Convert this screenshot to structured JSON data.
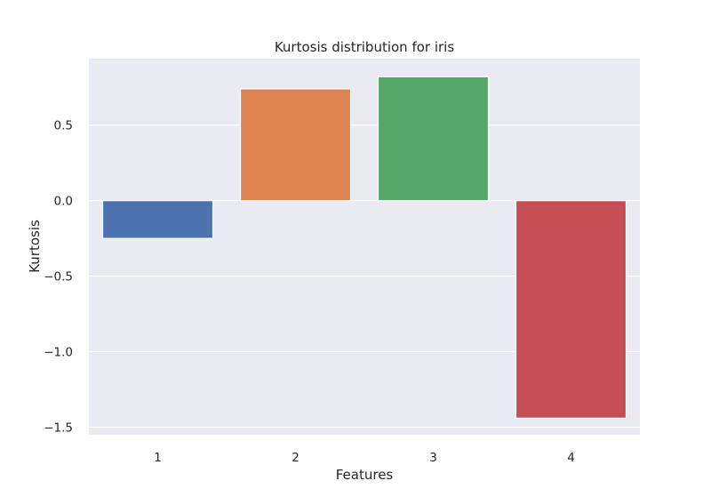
{
  "chart_data": {
    "type": "bar",
    "title": "Kurtosis distribution for iris",
    "xlabel": "Features",
    "ylabel": "Kurtosis",
    "categories": [
      "1",
      "2",
      "3",
      "4"
    ],
    "values": [
      -0.25,
      0.74,
      0.82,
      -1.44
    ],
    "ylim": [
      -1.55,
      0.94
    ],
    "yticks": [
      0.5,
      0.0,
      -0.5,
      -1.0,
      -1.5
    ],
    "ytick_labels": [
      "0.5",
      "0.0",
      "−0.5",
      "−1.0",
      "−1.5"
    ],
    "grid": true,
    "legend": "none",
    "colors": [
      "#4c72b0",
      "#dd8452",
      "#55a868",
      "#c44e52"
    ],
    "plot_background": "#eaeaf2"
  }
}
